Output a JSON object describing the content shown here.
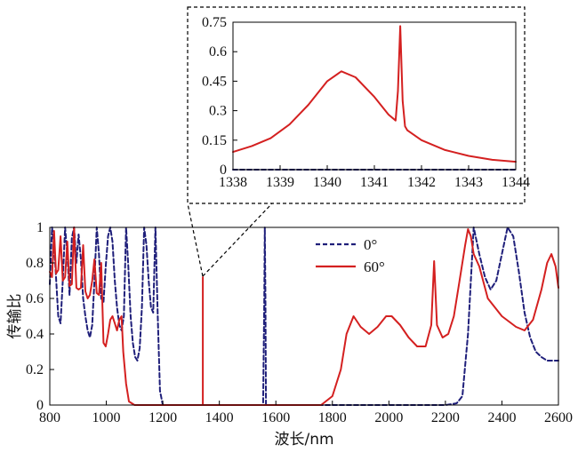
{
  "chart_data": [
    {
      "id": "main",
      "type": "line",
      "title": "",
      "xlabel": "波长/nm",
      "ylabel": "传输比",
      "xlim": [
        800,
        2600
      ],
      "ylim": [
        0,
        1
      ],
      "xticks": [
        800,
        1000,
        1200,
        1400,
        1600,
        1800,
        2000,
        2200,
        2400,
        2600
      ],
      "yticks": [
        0,
        0.2,
        0.4,
        0.6,
        0.8,
        1
      ],
      "ytick_labels": [
        "0",
        "0.2",
        "0.4",
        "0.6",
        "0.8",
        "1"
      ],
      "grid": false,
      "legend_position": "top-right",
      "series": [
        {
          "name": "0°",
          "color": "#1f1f7a",
          "style": "dashed",
          "x": [
            800,
            808,
            815,
            822,
            830,
            838,
            846,
            854,
            862,
            870,
            878,
            886,
            894,
            902,
            910,
            918,
            926,
            934,
            942,
            950,
            958,
            966,
            974,
            982,
            990,
            998,
            1006,
            1014,
            1022,
            1030,
            1038,
            1046,
            1054,
            1062,
            1070,
            1078,
            1086,
            1094,
            1102,
            1110,
            1118,
            1126,
            1134,
            1142,
            1150,
            1158,
            1166,
            1174,
            1182,
            1190,
            1200,
            1250,
            1300,
            1400,
            1500,
            1555,
            1559,
            1561,
            1563,
            1565,
            1569,
            1600,
            1800,
            2000,
            2200,
            2240,
            2260,
            2280,
            2300,
            2320,
            2340,
            2360,
            2380,
            2400,
            2420,
            2440,
            2460,
            2480,
            2500,
            2520,
            2540,
            2560,
            2580,
            2600
          ],
          "y": [
            0.68,
            1.0,
            0.9,
            0.72,
            0.5,
            0.46,
            0.7,
            1.0,
            0.85,
            0.62,
            0.94,
            1.0,
            0.8,
            0.96,
            0.82,
            0.6,
            0.5,
            0.42,
            0.38,
            0.45,
            0.7,
            1.0,
            0.85,
            0.6,
            0.58,
            0.78,
            0.95,
            1.0,
            0.92,
            0.7,
            0.55,
            0.45,
            0.42,
            0.5,
            1.0,
            0.78,
            0.5,
            0.35,
            0.27,
            0.25,
            0.32,
            0.55,
            1.0,
            0.9,
            0.7,
            0.55,
            0.52,
            1.0,
            0.5,
            0.08,
            0.0,
            0.0,
            0.0,
            0.0,
            0.0,
            0.0,
            0.6,
            1.0,
            0.6,
            0.0,
            0.0,
            0.0,
            0.0,
            0.0,
            0.0,
            0.01,
            0.05,
            0.4,
            1.0,
            0.85,
            0.72,
            0.65,
            0.7,
            0.85,
            1.0,
            0.95,
            0.75,
            0.52,
            0.38,
            0.3,
            0.27,
            0.25,
            0.25,
            0.25
          ]
        },
        {
          "name": "60°",
          "color": "#d42020",
          "style": "solid",
          "x": [
            800,
            808,
            815,
            822,
            830,
            838,
            846,
            854,
            862,
            870,
            878,
            886,
            894,
            902,
            910,
            918,
            926,
            934,
            942,
            950,
            958,
            966,
            974,
            982,
            990,
            998,
            1006,
            1014,
            1022,
            1030,
            1038,
            1046,
            1054,
            1060,
            1070,
            1080,
            1100,
            1150,
            1200,
            1250,
            1300,
            1330,
            1338,
            1340.3,
            1341.5,
            1341.6,
            1341.7,
            1344,
            1350,
            1360,
            1380,
            1500,
            1700,
            1760,
            1800,
            1830,
            1850,
            1875,
            1900,
            1930,
            1960,
            1990,
            2010,
            2040,
            2070,
            2100,
            2130,
            2150,
            2160,
            2170,
            2190,
            2210,
            2230,
            2250,
            2270,
            2280,
            2290,
            2300,
            2320,
            2350,
            2400,
            2450,
            2480,
            2510,
            2540,
            2560,
            2575,
            2590,
            2600
          ],
          "y": [
            0.75,
            0.72,
            0.98,
            0.74,
            0.76,
            0.95,
            0.7,
            0.72,
            0.92,
            0.67,
            0.68,
            1.0,
            0.66,
            0.65,
            0.66,
            0.9,
            0.64,
            0.6,
            0.62,
            0.7,
            0.82,
            0.63,
            0.62,
            0.8,
            0.35,
            0.33,
            0.4,
            0.48,
            0.5,
            0.46,
            0.42,
            0.48,
            0.5,
            0.3,
            0.12,
            0.02,
            0.0,
            0.0,
            0.0,
            0.0,
            0.0,
            0.0,
            0.0,
            0.0,
            0.0,
            0.72,
            0.0,
            0.0,
            0.0,
            0.0,
            0.0,
            0.0,
            0.0,
            0.0,
            0.05,
            0.2,
            0.4,
            0.5,
            0.44,
            0.4,
            0.44,
            0.5,
            0.5,
            0.45,
            0.38,
            0.33,
            0.33,
            0.45,
            0.81,
            0.45,
            0.38,
            0.4,
            0.5,
            0.7,
            0.9,
            0.99,
            0.95,
            0.85,
            0.78,
            0.6,
            0.5,
            0.44,
            0.42,
            0.48,
            0.65,
            0.8,
            0.85,
            0.78,
            0.66
          ]
        }
      ]
    },
    {
      "id": "inset",
      "type": "line",
      "title": "",
      "xlabel": "",
      "ylabel": "",
      "xlim": [
        1338,
        1344
      ],
      "ylim": [
        0,
        0.75
      ],
      "xticks": [
        1338,
        1339,
        1340,
        1341,
        1342,
        1343,
        1344
      ],
      "yticks": [
        0,
        0.15,
        0.3,
        0.45,
        0.6,
        0.75
      ],
      "ytick_labels": [
        "0",
        "0.15",
        "0.3",
        "0.45",
        "0.6",
        "0.75"
      ],
      "grid": false,
      "series": [
        {
          "name": "0°",
          "color": "#1f1f7a",
          "style": "dashed",
          "x": [
            1338,
            1344
          ],
          "y": [
            0.0,
            0.0
          ]
        },
        {
          "name": "60°",
          "color": "#d42020",
          "style": "solid",
          "x": [
            1338,
            1338.4,
            1338.8,
            1339.2,
            1339.6,
            1340.0,
            1340.3,
            1340.6,
            1341.0,
            1341.3,
            1341.45,
            1341.5,
            1341.55,
            1341.6,
            1341.65,
            1341.7,
            1342.0,
            1342.5,
            1343.0,
            1343.5,
            1344
          ],
          "y": [
            0.09,
            0.12,
            0.16,
            0.23,
            0.33,
            0.45,
            0.5,
            0.47,
            0.37,
            0.28,
            0.25,
            0.4,
            0.73,
            0.35,
            0.22,
            0.2,
            0.15,
            0.1,
            0.07,
            0.05,
            0.04
          ]
        }
      ]
    }
  ]
}
